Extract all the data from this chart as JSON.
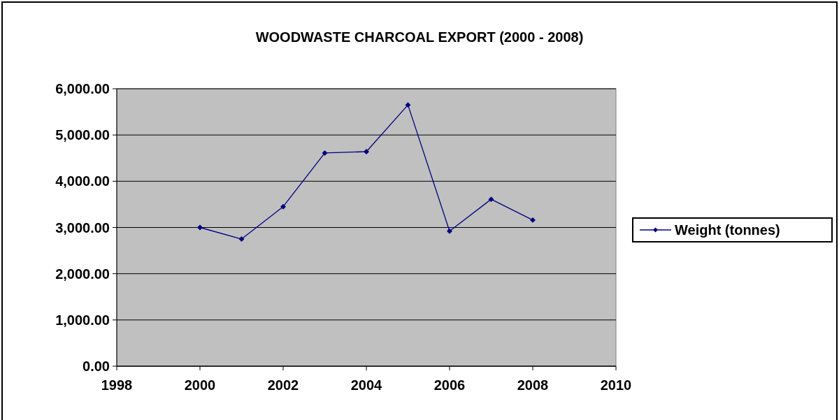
{
  "chart_data": {
    "type": "line",
    "title": "WOODWASTE CHARCOAL EXPORT (2000 - 2008)",
    "x": [
      2000,
      2001,
      2002,
      2003,
      2004,
      2005,
      2006,
      2007,
      2008
    ],
    "series": [
      {
        "name": "Weight (tonnes)",
        "color": "#000080",
        "values": [
          3000,
          2750,
          3450,
          4610,
          4640,
          5650,
          2920,
          3610,
          3160
        ]
      }
    ],
    "xlim": [
      1998,
      2010
    ],
    "xticks": [
      1998,
      2000,
      2002,
      2004,
      2006,
      2008,
      2010
    ],
    "ylim": [
      0,
      6000
    ],
    "yticks": [
      {
        "value": 0,
        "label": "0.00"
      },
      {
        "value": 1000,
        "label": "1,000.00"
      },
      {
        "value": 2000,
        "label": "2,000.00"
      },
      {
        "value": 3000,
        "label": "3,000.00"
      },
      {
        "value": 4000,
        "label": "4,000.00"
      },
      {
        "value": 5000,
        "label": "5,000.00"
      },
      {
        "value": 6000,
        "label": "6,000.00"
      }
    ],
    "grid": "y",
    "legend": "right",
    "marker": "diamond",
    "line_style": "solid"
  }
}
